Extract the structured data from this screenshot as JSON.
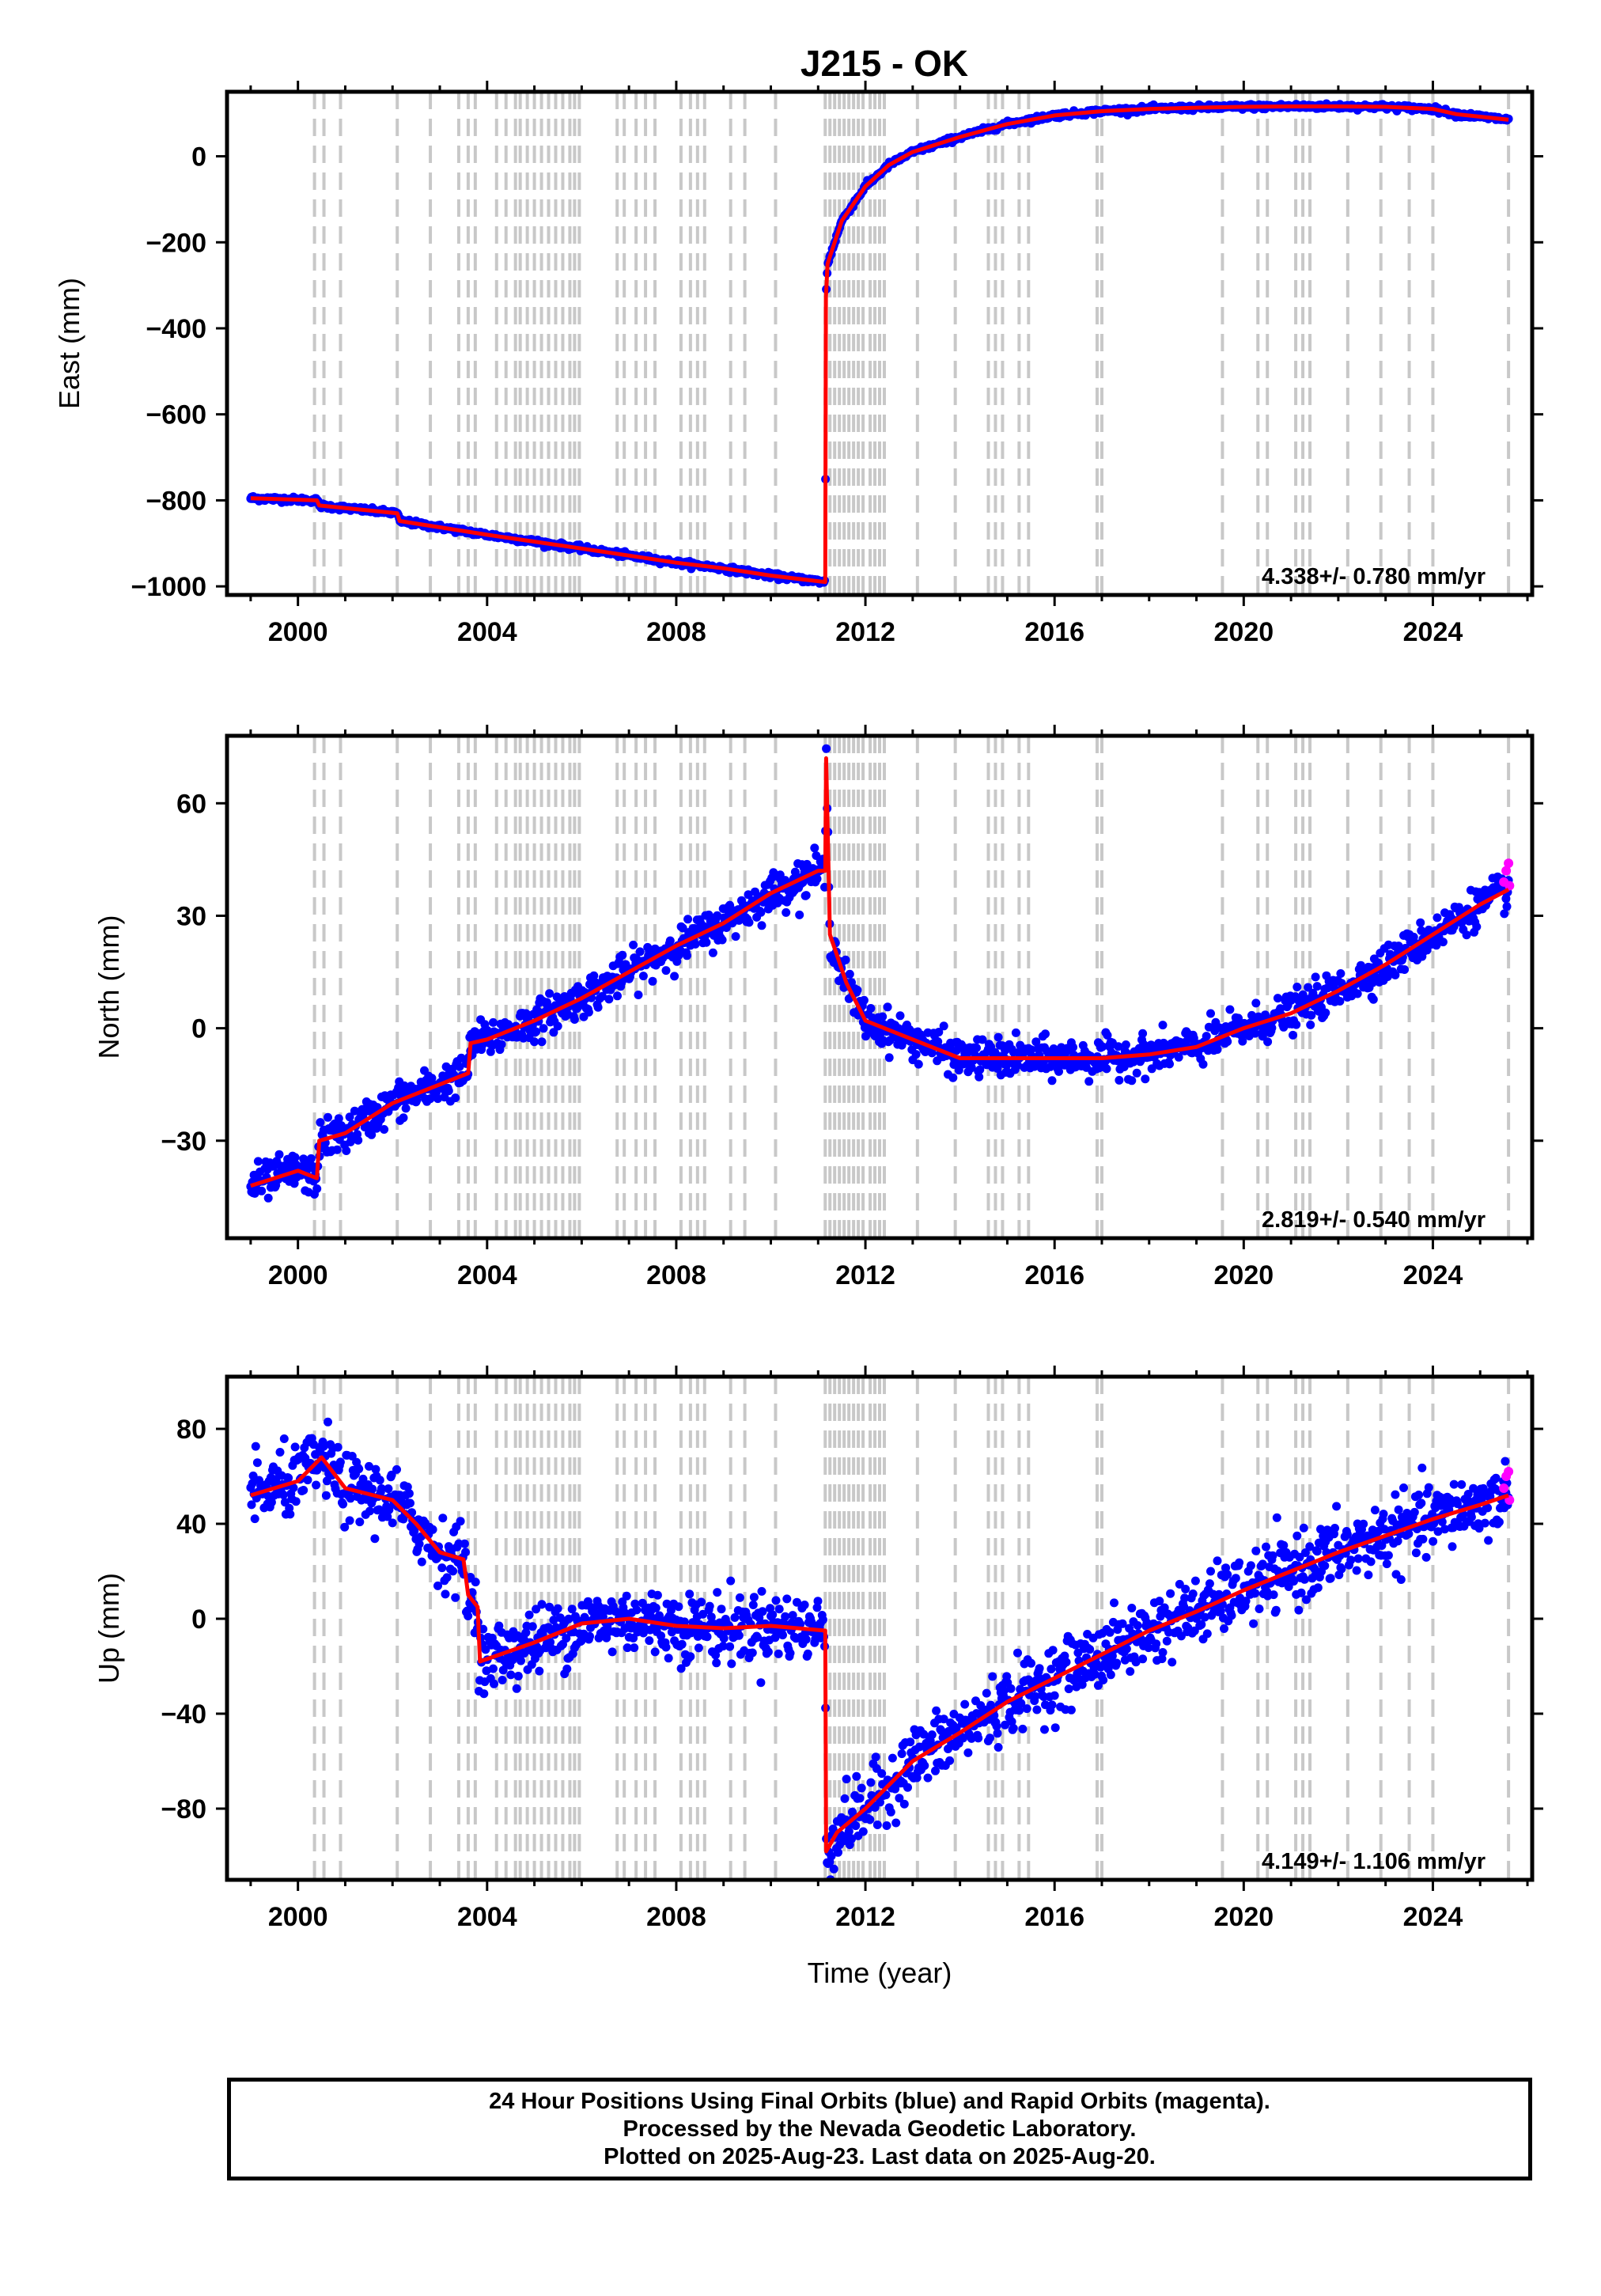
{
  "chart_data": {
    "type": "scatter",
    "title": "J215 - OK",
    "xlabel": "Time (year)",
    "xlim": [
      1998.5,
      2026.1
    ],
    "x_ticks": [
      2000,
      2004,
      2008,
      2012,
      2016,
      2020,
      2024
    ],
    "x_tick_labels": [
      "2000",
      "2004",
      "2008",
      "2012",
      "2016",
      "2020",
      "2024"
    ],
    "grid": false,
    "series_colors": {
      "final_orbits": "#0000ff",
      "rapid_orbits": "#ff00ff",
      "model_fit": "#ff0000",
      "events": "#c8c8c8"
    },
    "event_lines": [
      2000.35,
      2000.55,
      2000.9,
      2002.1,
      2002.8,
      2003.4,
      2003.6,
      2003.75,
      2004.2,
      2004.4,
      2004.6,
      2004.7,
      2004.85,
      2005.0,
      2005.15,
      2005.3,
      2005.45,
      2005.6,
      2005.75,
      2005.85,
      2005.95,
      2006.75,
      2006.9,
      2007.15,
      2007.35,
      2007.55,
      2008.1,
      2008.3,
      2008.45,
      2008.6,
      2009.15,
      2009.45,
      2010.1,
      2011.15,
      2011.25,
      2011.35,
      2011.45,
      2011.55,
      2011.65,
      2011.75,
      2011.85,
      2011.95,
      2012.1,
      2012.2,
      2012.3,
      2012.4,
      2013.1,
      2013.9,
      2014.6,
      2014.75,
      2014.9,
      2015.25,
      2015.45,
      2016.9,
      2017.0,
      2019.55,
      2020.3,
      2020.5,
      2021.1,
      2021.25,
      2021.4,
      2022.2,
      2022.9,
      2023.5,
      2024.0,
      2025.6
    ],
    "panels": [
      {
        "name": "east",
        "ylabel": "East (mm)",
        "ylim": [
          -1020,
          150
        ],
        "y_ticks": [
          -1000,
          -800,
          -600,
          -400,
          -200,
          0
        ],
        "y_tick_labels": [
          "−1000",
          "−800",
          "−600",
          "−400",
          "−200",
          "0"
        ],
        "rate_text": "4.338+/- 0.780 mm/yr",
        "noise": 3,
        "model": [
          [
            1999.0,
            -795
          ],
          [
            2000.4,
            -800
          ],
          [
            2000.45,
            -812
          ],
          [
            2002.1,
            -830
          ],
          [
            2002.15,
            -848
          ],
          [
            2004.0,
            -880
          ],
          [
            2006.0,
            -912
          ],
          [
            2008.0,
            -945
          ],
          [
            2009.0,
            -958
          ],
          [
            2010.0,
            -975
          ],
          [
            2011.15,
            -990
          ],
          [
            2011.165,
            -330
          ],
          [
            2011.2,
            -250
          ],
          [
            2011.5,
            -150
          ],
          [
            2012.0,
            -70
          ],
          [
            2012.5,
            -20
          ],
          [
            2013.0,
            10
          ],
          [
            2014.0,
            45
          ],
          [
            2015.0,
            75
          ],
          [
            2016.0,
            95
          ],
          [
            2017.0,
            105
          ],
          [
            2018.0,
            110
          ],
          [
            2019.0,
            113
          ],
          [
            2020.0,
            115
          ],
          [
            2021.0,
            116
          ],
          [
            2022.0,
            116
          ],
          [
            2023.0,
            115
          ],
          [
            2024.0,
            110
          ],
          [
            2024.5,
            98
          ],
          [
            2025.6,
            85
          ]
        ]
      },
      {
        "name": "north",
        "ylabel": "North (mm)",
        "ylim": [
          -56,
          78
        ],
        "y_ticks": [
          -30,
          0,
          30,
          60
        ],
        "y_tick_labels": [
          "−30",
          "0",
          "30",
          "60"
        ],
        "rate_text": "2.819+/- 0.540 mm/yr",
        "noise": 2.5,
        "model": [
          [
            1999.0,
            -42
          ],
          [
            2000.0,
            -38
          ],
          [
            2000.4,
            -40
          ],
          [
            2000.45,
            -30
          ],
          [
            2001.0,
            -28
          ],
          [
            2002.0,
            -20
          ],
          [
            2003.0,
            -15
          ],
          [
            2003.6,
            -12
          ],
          [
            2003.65,
            -4
          ],
          [
            2004.0,
            -3
          ],
          [
            2005.0,
            2
          ],
          [
            2005.5,
            5
          ],
          [
            2006.0,
            8
          ],
          [
            2007.0,
            15
          ],
          [
            2008.0,
            22
          ],
          [
            2009.0,
            28
          ],
          [
            2010.0,
            36
          ],
          [
            2011.0,
            42
          ],
          [
            2011.15,
            42
          ],
          [
            2011.17,
            72
          ],
          [
            2011.25,
            25
          ],
          [
            2011.6,
            12
          ],
          [
            2012.0,
            2
          ],
          [
            2013.0,
            -3
          ],
          [
            2014.0,
            -8
          ],
          [
            2015.0,
            -8
          ],
          [
            2016.0,
            -8
          ],
          [
            2017.0,
            -8
          ],
          [
            2018.0,
            -7
          ],
          [
            2019.0,
            -5
          ],
          [
            2020.0,
            0
          ],
          [
            2021.0,
            4
          ],
          [
            2022.0,
            10
          ],
          [
            2023.0,
            17
          ],
          [
            2024.0,
            25
          ],
          [
            2025.0,
            33
          ],
          [
            2025.6,
            37
          ]
        ],
        "rapid_points": [
          [
            2025.5,
            39
          ],
          [
            2025.55,
            42
          ],
          [
            2025.6,
            44
          ],
          [
            2025.62,
            38
          ]
        ]
      },
      {
        "name": "up",
        "ylabel": "Up (mm)",
        "ylim": [
          -110,
          102
        ],
        "y_ticks": [
          -80,
          -40,
          0,
          40,
          80
        ],
        "y_tick_labels": [
          "−80",
          "−40",
          "0",
          "40",
          "80"
        ],
        "rate_text": "4.149+/- 1.106 mm/yr",
        "noise": 7,
        "model": [
          [
            1999.0,
            52
          ],
          [
            2000.0,
            58
          ],
          [
            2000.5,
            68
          ],
          [
            2001.0,
            55
          ],
          [
            2002.0,
            50
          ],
          [
            2002.5,
            40
          ],
          [
            2003.0,
            28
          ],
          [
            2003.5,
            25
          ],
          [
            2003.6,
            10
          ],
          [
            2003.8,
            5
          ],
          [
            2003.85,
            -18
          ],
          [
            2005.0,
            -10
          ],
          [
            2006.0,
            -2
          ],
          [
            2007.0,
            0
          ],
          [
            2008.0,
            -3
          ],
          [
            2009.0,
            -4
          ],
          [
            2010.0,
            -3
          ],
          [
            2011.15,
            -5
          ],
          [
            2011.17,
            -98
          ],
          [
            2011.4,
            -90
          ],
          [
            2012.0,
            -80
          ],
          [
            2013.0,
            -60
          ],
          [
            2014.0,
            -48
          ],
          [
            2015.0,
            -35
          ],
          [
            2016.0,
            -25
          ],
          [
            2017.0,
            -15
          ],
          [
            2018.0,
            -5
          ],
          [
            2019.0,
            3
          ],
          [
            2020.0,
            12
          ],
          [
            2021.0,
            20
          ],
          [
            2022.0,
            28
          ],
          [
            2023.0,
            35
          ],
          [
            2024.0,
            42
          ],
          [
            2025.0,
            48
          ],
          [
            2025.6,
            52
          ]
        ],
        "rapid_points": [
          [
            2025.5,
            55
          ],
          [
            2025.55,
            60
          ],
          [
            2025.6,
            62
          ],
          [
            2025.62,
            50
          ]
        ]
      }
    ]
  },
  "footer": {
    "line1": "24 Hour Positions Using Final Orbits (blue) and Rapid Orbits (magenta).",
    "line2": "Processed by the Nevada Geodetic Laboratory.",
    "line3": "Plotted on 2025-Aug-23. Last data on 2025-Aug-20."
  }
}
